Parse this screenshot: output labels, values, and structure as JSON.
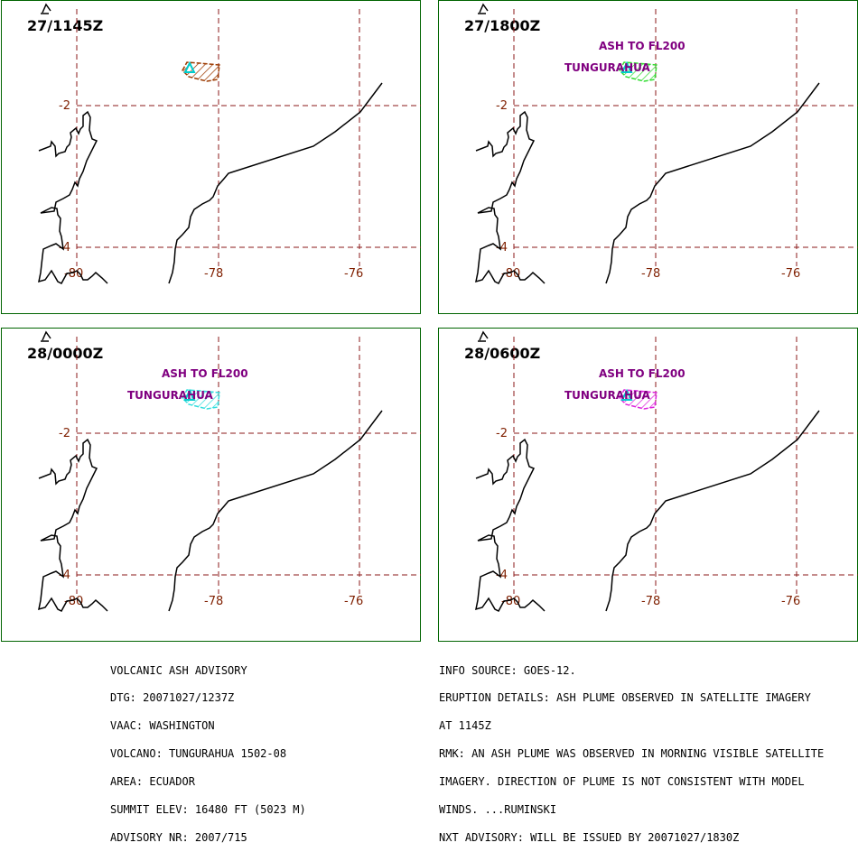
{
  "panels": [
    {
      "time": "27/1145Z",
      "ash_label": "",
      "volcano_label": "",
      "plume_color": "#9c3a00"
    },
    {
      "time": "27/1800Z",
      "ash_label": "ASH TO FL200",
      "volcano_label": "TUNGURAHUA",
      "plume_color": "#33dd33"
    },
    {
      "time": "28/0000Z",
      "ash_label": "ASH TO FL200",
      "volcano_label": "TUNGURAHUA",
      "plume_color": "#33dddd"
    },
    {
      "time": "28/0600Z",
      "ash_label": "ASH TO FL200",
      "volcano_label": "TUNGURAHUA",
      "plume_color": "#dd22dd"
    }
  ],
  "map": {
    "lat_labels": [
      "-2",
      "-4"
    ],
    "lon_labels": [
      "-80",
      "-78",
      "-76"
    ],
    "volcano_marker_color": "#00cccc",
    "grid_color": "#8b1a1a",
    "frame_color": "#006400"
  },
  "advisory_left": [
    "VOLCANIC ASH ADVISORY",
    "DTG: 20071027/1237Z",
    "VAAC: WASHINGTON",
    "VOLCANO: TUNGURAHUA 1502-08",
    "AREA: ECUADOR",
    "SUMMIT ELEV: 16480 FT (5023 M)",
    "ADVISORY NR: 2007/715"
  ],
  "advisory_right": [
    "INFO SOURCE: GOES-12.",
    "ERUPTION DETAILS: ASH PLUME OBSERVED IN SATELLITE IMAGERY",
    "AT 1145Z",
    "RMK: AN ASH PLUME WAS OBSERVED IN MORNING VISIBLE SATELLITE",
    "IMAGERY. DIRECTION OF PLUME IS NOT CONSISTENT WITH MODEL",
    "WINDS. ...RUMINSKI",
    "NXT ADVISORY: WILL BE ISSUED BY 20071027/1830Z"
  ]
}
